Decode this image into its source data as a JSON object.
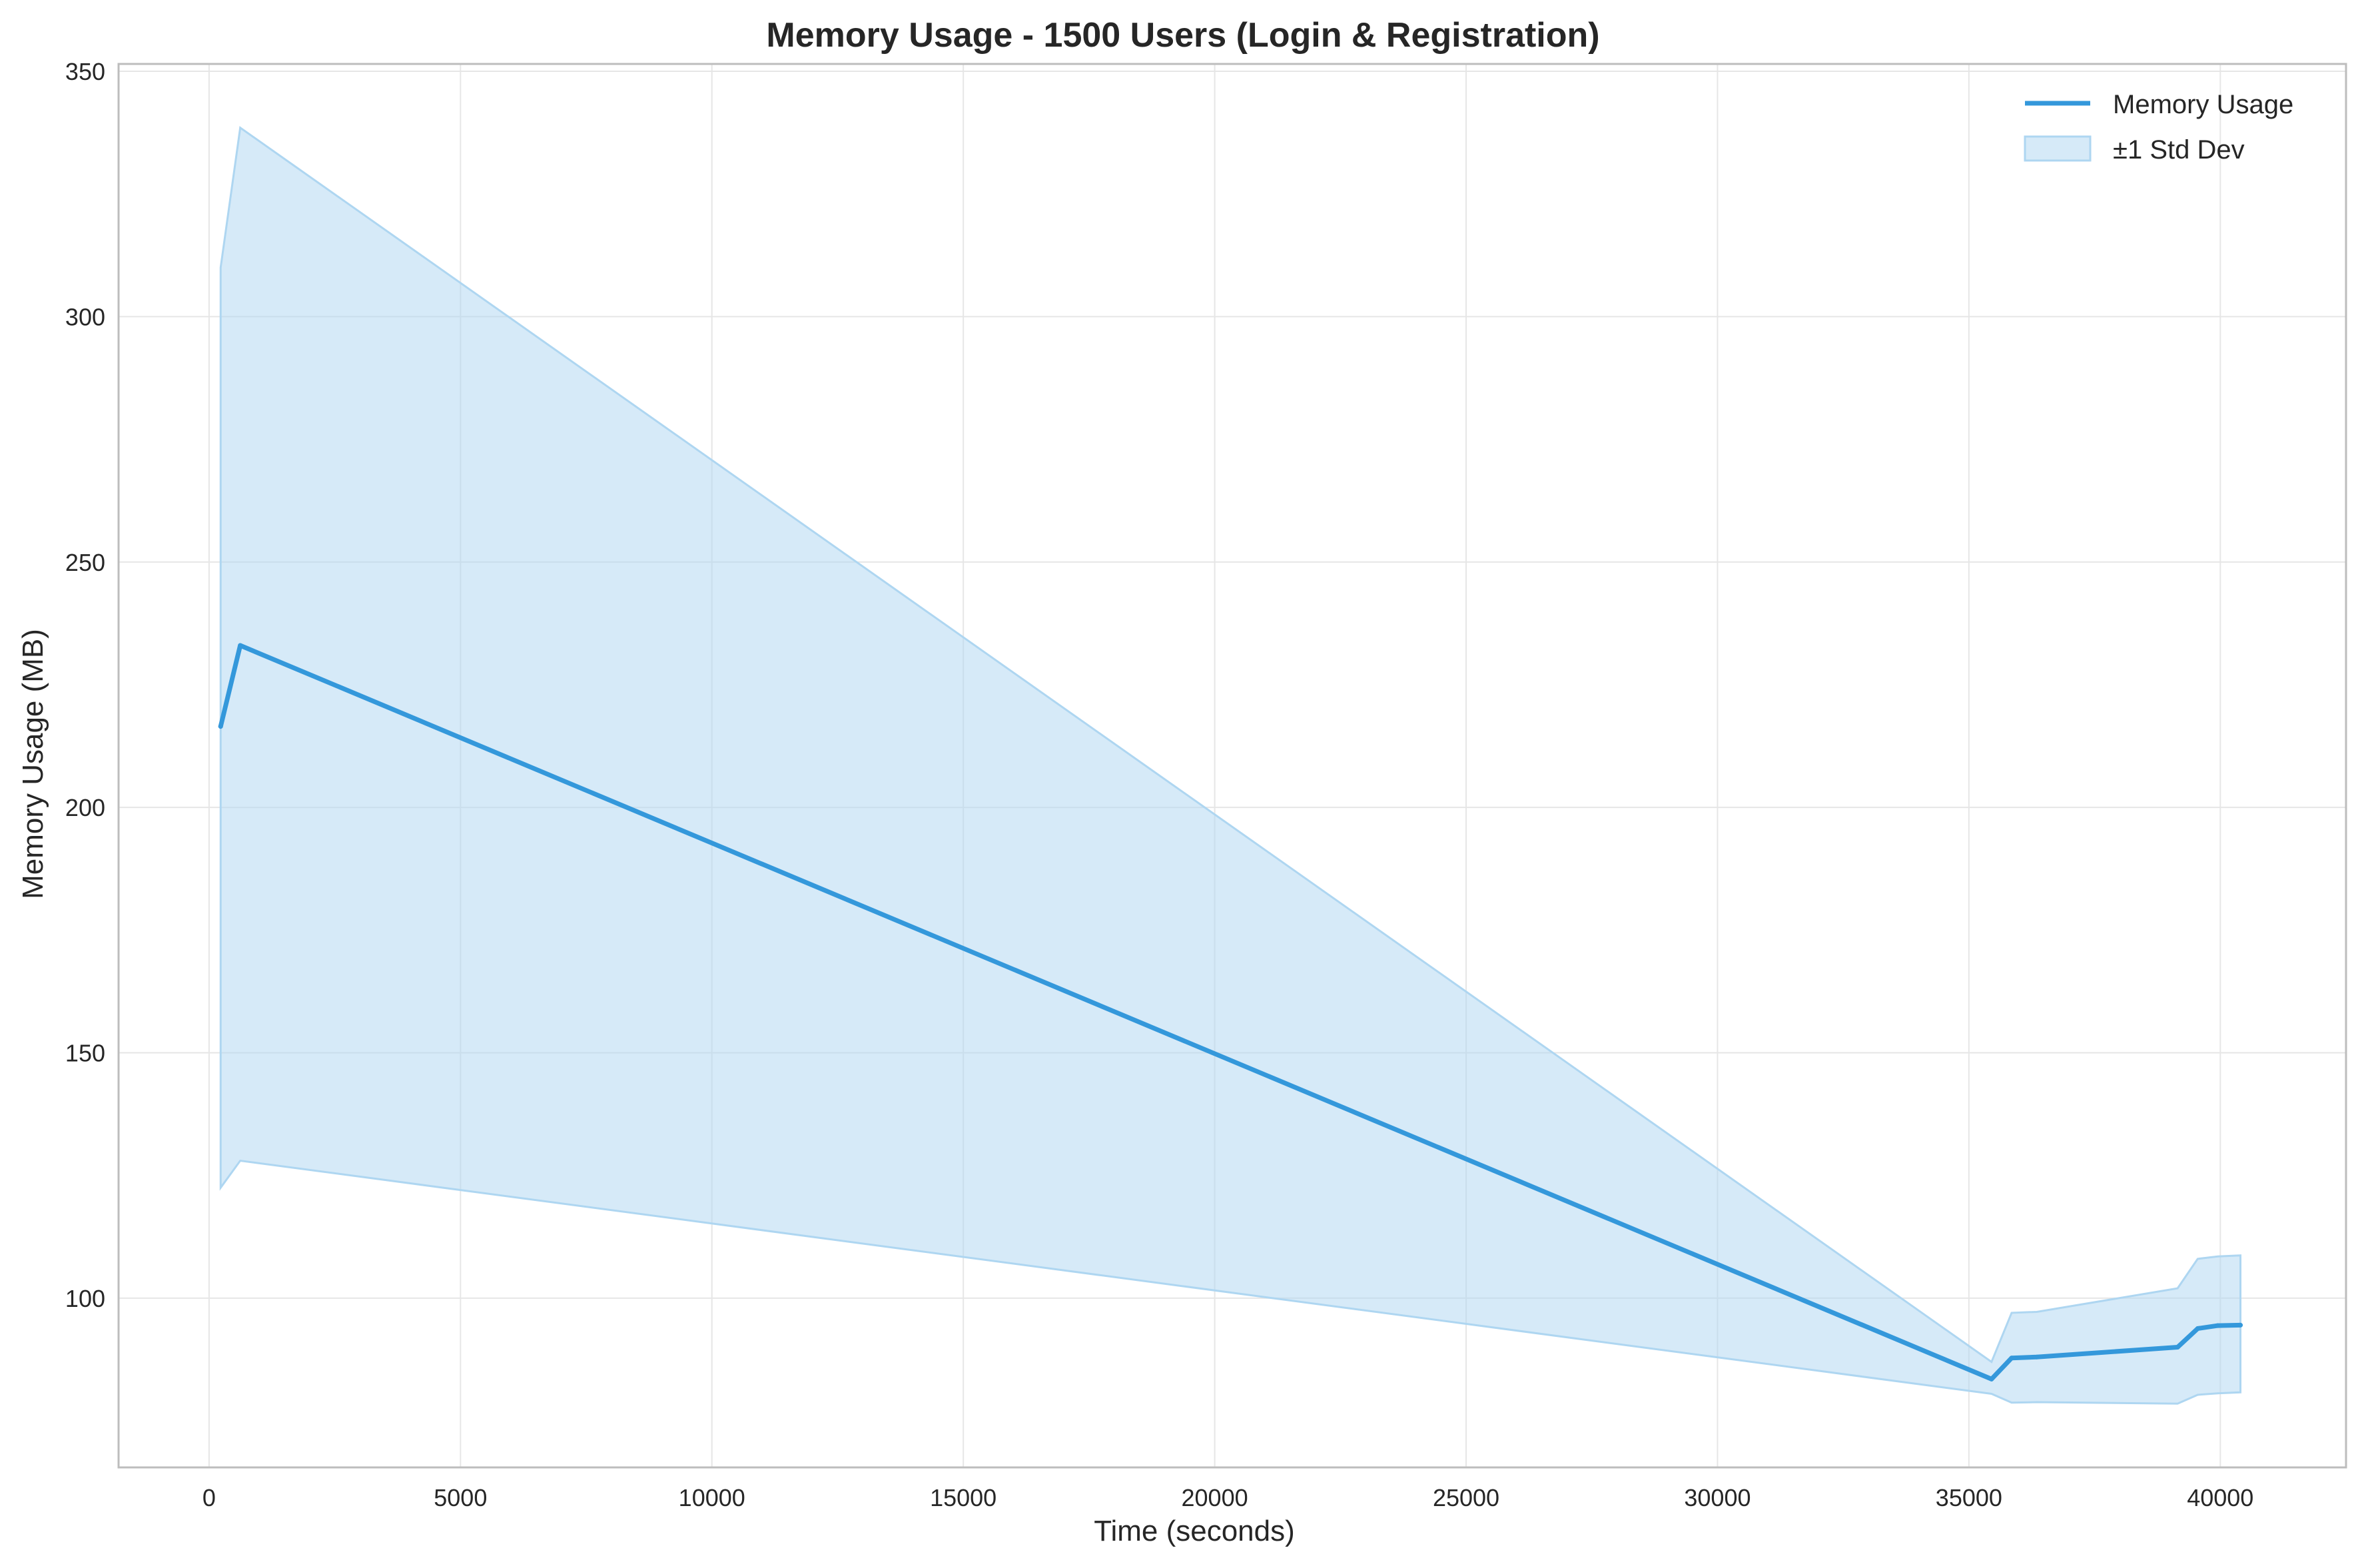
{
  "chart_data": {
    "type": "line",
    "title": "Memory Usage - 1500 Users (Login & Registration)",
    "xlabel": "Time (seconds)",
    "ylabel": "Memory Usage (MB)",
    "xlim": [
      -1800,
      42500
    ],
    "ylim": [
      65.5,
      351.5
    ],
    "xticks": [
      0,
      5000,
      10000,
      15000,
      20000,
      25000,
      30000,
      35000,
      40000
    ],
    "yticks": [
      100,
      150,
      200,
      250,
      300,
      350
    ],
    "grid": true,
    "legend_position": "top-right",
    "series": [
      {
        "name": "Memory Usage",
        "color": "#3498db",
        "x": [
          230,
          620,
          35450,
          35850,
          36350,
          39150,
          39550,
          39950,
          40400
        ],
        "y": [
          216.5,
          233.0,
          83.5,
          87.8,
          88.0,
          90.0,
          93.8,
          94.4,
          94.5
        ]
      }
    ],
    "band": {
      "name": "±1 Std Dev",
      "color": "#aed6f1",
      "x": [
        230,
        620,
        35450,
        35850,
        36350,
        39150,
        39550,
        39950,
        40400
      ],
      "upper": [
        310.0,
        338.5,
        87.0,
        97.0,
        97.2,
        102.0,
        108.0,
        108.5,
        108.7
      ],
      "lower": [
        122.5,
        128.0,
        80.5,
        78.7,
        78.8,
        78.5,
        80.3,
        80.6,
        80.8
      ]
    }
  }
}
